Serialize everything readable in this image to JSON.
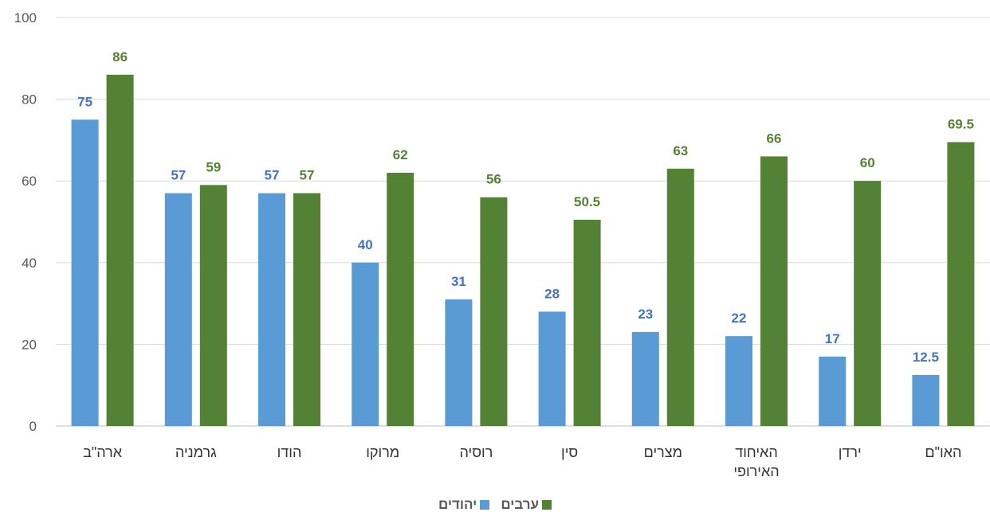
{
  "chart_data": {
    "type": "bar",
    "categories": [
      [
        "ארה\"ב"
      ],
      [
        "גרמניה"
      ],
      [
        "הודו"
      ],
      [
        "מרוקו"
      ],
      [
        "רוסיה"
      ],
      [
        "סין"
      ],
      [
        "מצרים"
      ],
      [
        "האיחוד",
        "האירופי"
      ],
      [
        "ירדן"
      ],
      [
        "האו\"ם"
      ]
    ],
    "series": [
      {
        "name": "יהודים",
        "color": "#5B9BD5",
        "values": [
          75,
          57,
          57,
          40,
          31,
          28,
          23,
          22,
          17,
          12.5
        ],
        "labels": [
          "75",
          "57",
          "57",
          "40",
          "31",
          "28",
          "23",
          "22",
          "17",
          "12.5"
        ]
      },
      {
        "name": "ערבים",
        "color": "#548235",
        "values": [
          86,
          59,
          57,
          62,
          56,
          50.5,
          63,
          66,
          60,
          69.5
        ],
        "labels": [
          "86",
          "59",
          "57",
          "62",
          "56",
          "50.5",
          "63",
          "66",
          "60",
          "69.5"
        ]
      }
    ],
    "ylim": [
      0,
      100
    ],
    "yticks": [
      0,
      20,
      40,
      60,
      80,
      100
    ],
    "grid": true,
    "legend_position": "bottom"
  }
}
